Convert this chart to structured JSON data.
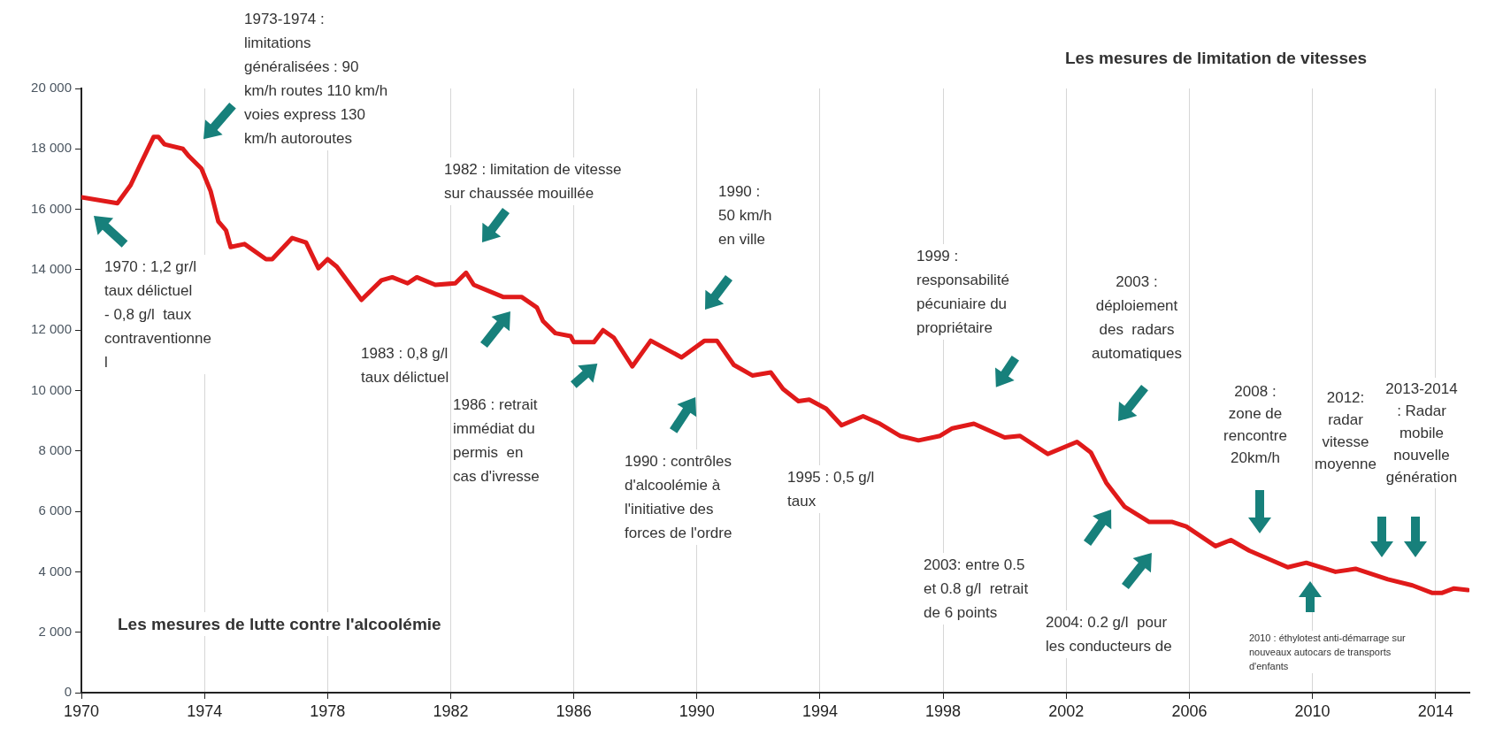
{
  "chart_data": {
    "type": "line",
    "x": [
      1970.0,
      1971.17,
      1971.6,
      1971.9,
      1972.35,
      1972.5,
      1972.7,
      1973.3,
      1973.5,
      1973.9,
      1974.2,
      1974.45,
      1974.7,
      1974.85,
      1975.3,
      1976.0,
      1976.2,
      1976.85,
      1977.3,
      1977.7,
      1978.0,
      1978.3,
      1979.1,
      1979.75,
      1980.1,
      1980.6,
      1980.9,
      1981.5,
      1982.15,
      1982.5,
      1982.75,
      1983.7,
      1984.3,
      1984.8,
      1985.0,
      1985.4,
      1985.9,
      1986.0,
      1986.65,
      1986.95,
      1987.3,
      1987.9,
      1988.5,
      1989.5,
      1990.25,
      1990.65,
      1991.2,
      1991.8,
      1992.4,
      1992.8,
      1993.3,
      1993.65,
      1994.2,
      1994.7,
      1995.4,
      1995.95,
      1996.6,
      1997.2,
      1997.9,
      1998.3,
      1999.0,
      2000.0,
      2000.5,
      2001.4,
      2002.35,
      2002.8,
      2003.3,
      2003.9,
      2004.7,
      2005.45,
      2005.9,
      2006.85,
      2007.35,
      2007.95,
      2009.2,
      2009.8,
      2010.75,
      2011.4,
      2012.45,
      2013.25,
      2013.9,
      2014.2,
      2014.6,
      2015.05
    ],
    "series": [
      {
        "color": "#e01a1a",
        "values": [
          16400,
          16200,
          16800,
          17450,
          18400,
          18400,
          18150,
          18000,
          17750,
          17350,
          16600,
          15600,
          15300,
          14750,
          14850,
          14350,
          14350,
          15050,
          14900,
          14050,
          14350,
          14100,
          13000,
          13650,
          13750,
          13550,
          13750,
          13500,
          13550,
          13900,
          13500,
          13100,
          13100,
          12750,
          12300,
          11900,
          11800,
          11600,
          11600,
          12000,
          11750,
          10800,
          11650,
          11100,
          11650,
          11650,
          10850,
          10500,
          10600,
          10050,
          9650,
          9700,
          9400,
          8850,
          9150,
          8900,
          8500,
          8350,
          8500,
          8750,
          8900,
          8450,
          8500,
          7900,
          8300,
          7950,
          6950,
          6150,
          5650,
          5650,
          5500,
          4850,
          5050,
          4700,
          4150,
          4300,
          4000,
          4100,
          3750,
          3550,
          3300,
          3300,
          3450,
          3400
        ]
      }
    ],
    "xlim": [
      1970,
      2015.1
    ],
    "xticks": [
      1970,
      1974,
      1978,
      1982,
      1986,
      1990,
      1994,
      1998,
      2002,
      2006,
      2010,
      2014
    ],
    "ylim": [
      0,
      20000
    ],
    "yticks": [
      0,
      {
        "value": 2000,
        "label": "2 000"
      },
      {
        "value": 4000,
        "label": "4 000"
      },
      {
        "value": 6000,
        "label": "6 000"
      },
      {
        "value": 8000,
        "label": "8 000"
      },
      {
        "value": 10000,
        "label": "10 000"
      },
      {
        "value": 12000,
        "label": "12 000"
      },
      {
        "value": 14000,
        "label": "14 000"
      },
      {
        "value": 16000,
        "label": "16 000"
      },
      {
        "value": 18000,
        "label": "18 000"
      },
      {
        "value": 20000,
        "label": "20 000"
      }
    ],
    "grid": "x",
    "marker": "none",
    "annotations": [
      "1973-1974 :\nlimitations\ngénéralisées : 90\nkm/h routes 110 km/h\nvoies express 130\nkm/h autoroutes",
      "1970 : 1,2 gr/l\ntaux délictuel\n- 0,8 g/l  taux\ncontraventionne\nl",
      "1982 : limitation de vitesse\nsur chaussée mouillée",
      "1990 :\n50 km/h\nen ville",
      "1983 : 0,8 g/l\ntaux délictuel",
      "1986 : retrait\nimmédiat du\npermis  en\ncas d'ivresse",
      "1990 : contrôles\nd'alcoolémie à\nl'initiative des\nforces de l'ordre",
      "1995 : 0,5 g/l\ntaux",
      "1999 :\nresponsabilité\npécuniaire du\npropriétaire",
      "2003 :\ndéploiement\ndes  radars\nautomatiques",
      "2003: entre 0.5\net 0.8 g/l  retrait\nde 6 points",
      "2004: 0.2 g/l  pour\nles conducteurs de",
      "2008 :\nzone de\nrencontre\n20km/h",
      "2012:\nradar\nvitesse\nmoyenne",
      "2013-2014\n: Radar\nmobile\nnouvelle\ngénération",
      "2010 : éthylotest anti-démarrage sur\nnouveaux autocars de transports\nd'enfants",
      "Les mesures de limitation de vitesses",
      "Les mesures de lutte contre l'alcoolémie"
    ]
  }
}
